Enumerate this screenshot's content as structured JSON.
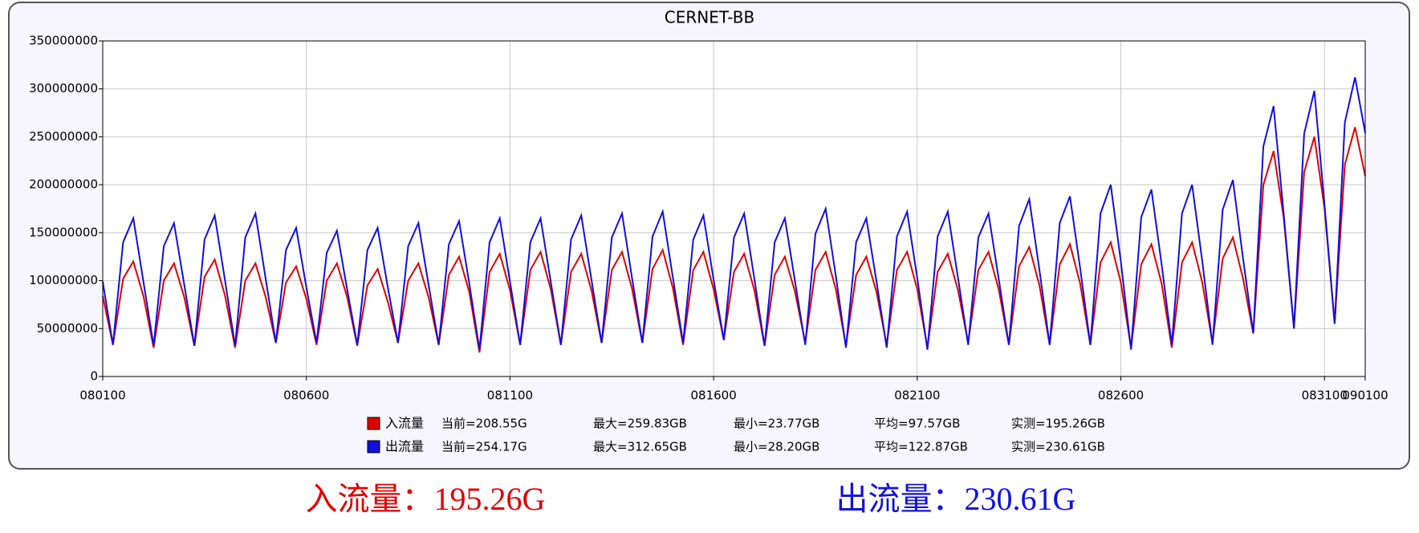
{
  "chart_data": {
    "type": "line",
    "title": "CERNET-BB",
    "categories": [
      "080100",
      null,
      null,
      null,
      null,
      null,
      null,
      null,
      null,
      null,
      null,
      null,
      null,
      null,
      null,
      null,
      null,
      null,
      null,
      null,
      "080600",
      null,
      null,
      null,
      null,
      null,
      null,
      null,
      null,
      null,
      null,
      null,
      null,
      null,
      null,
      null,
      null,
      null,
      null,
      null,
      "081100",
      null,
      null,
      null,
      null,
      null,
      null,
      null,
      null,
      null,
      null,
      null,
      null,
      null,
      null,
      null,
      null,
      null,
      null,
      null,
      "081600",
      null,
      null,
      null,
      null,
      null,
      null,
      null,
      null,
      null,
      null,
      null,
      null,
      null,
      null,
      null,
      null,
      null,
      null,
      null,
      "082100",
      null,
      null,
      null,
      null,
      null,
      null,
      null,
      null,
      null,
      null,
      null,
      null,
      null,
      null,
      null,
      null,
      null,
      null,
      null,
      "082600",
      null,
      null,
      null,
      null,
      null,
      null,
      null,
      null,
      null,
      null,
      null,
      null,
      null,
      null,
      null,
      null,
      null,
      null,
      null,
      "083100",
      null,
      null,
      null,
      "090100"
    ],
    "series": [
      {
        "name": "入流量",
        "color": "#e00000",
        "stats": [
          "当前=208.55G",
          "最大=259.83GB",
          "最小=23.77GB",
          "平均=97.57GB",
          "实测=195.26GB"
        ],
        "values": [
          84000000,
          33000000,
          102000000,
          120000000,
          84000000,
          30000000,
          100000000,
          118000000,
          83000000,
          32000000,
          104000000,
          122000000,
          85000000,
          30000000,
          100000000,
          118000000,
          83000000,
          35000000,
          98000000,
          115000000,
          81000000,
          33000000,
          100000000,
          118000000,
          83000000,
          32000000,
          95000000,
          112000000,
          78000000,
          35000000,
          100000000,
          118000000,
          83000000,
          33000000,
          106000000,
          125000000,
          88000000,
          25000000,
          109000000,
          128000000,
          90000000,
          33000000,
          111000000,
          130000000,
          91000000,
          33000000,
          109000000,
          128000000,
          90000000,
          35000000,
          111000000,
          130000000,
          91000000,
          35000000,
          112000000,
          132000000,
          92000000,
          33000000,
          111000000,
          130000000,
          91000000,
          38000000,
          109000000,
          128000000,
          90000000,
          32000000,
          106000000,
          125000000,
          88000000,
          35000000,
          111000000,
          130000000,
          91000000,
          32000000,
          106000000,
          125000000,
          88000000,
          33000000,
          111000000,
          130000000,
          91000000,
          30000000,
          109000000,
          128000000,
          90000000,
          35000000,
          111000000,
          130000000,
          91000000,
          33000000,
          115000000,
          135000000,
          95000000,
          33000000,
          117000000,
          138000000,
          97000000,
          33000000,
          119000000,
          140000000,
          98000000,
          30000000,
          117000000,
          138000000,
          97000000,
          30000000,
          119000000,
          140000000,
          98000000,
          35000000,
          123000000,
          145000000,
          102000000,
          45000000,
          200000000,
          235000000,
          165000000,
          50000000,
          213000000,
          250000000,
          175000000,
          55000000,
          221000000,
          260000000,
          209000000
        ]
      },
      {
        "name": "出流量",
        "color": "#1010e0",
        "stats": [
          "当前=254.17G",
          "最大=312.65GB",
          "最小=28.20GB",
          "平均=122.87GB",
          "实测=230.61GB"
        ],
        "values": [
          99000000,
          33000000,
          140000000,
          165000000,
          99000000,
          32000000,
          136000000,
          160000000,
          96000000,
          32000000,
          143000000,
          168000000,
          101000000,
          32000000,
          145000000,
          170000000,
          102000000,
          35000000,
          132000000,
          155000000,
          93000000,
          35000000,
          129000000,
          152000000,
          91000000,
          33000000,
          132000000,
          155000000,
          93000000,
          35000000,
          136000000,
          160000000,
          96000000,
          33000000,
          138000000,
          162000000,
          97000000,
          28000000,
          140000000,
          165000000,
          99000000,
          33000000,
          140000000,
          165000000,
          99000000,
          33000000,
          143000000,
          168000000,
          101000000,
          35000000,
          145000000,
          170000000,
          102000000,
          35000000,
          146000000,
          172000000,
          103000000,
          35000000,
          143000000,
          168000000,
          101000000,
          38000000,
          145000000,
          170000000,
          102000000,
          32000000,
          140000000,
          165000000,
          99000000,
          33000000,
          149000000,
          175000000,
          105000000,
          30000000,
          140000000,
          165000000,
          99000000,
          30000000,
          146000000,
          172000000,
          103000000,
          28000000,
          146000000,
          172000000,
          103000000,
          33000000,
          145000000,
          170000000,
          102000000,
          33000000,
          157000000,
          185000000,
          111000000,
          33000000,
          160000000,
          188000000,
          113000000,
          33000000,
          170000000,
          200000000,
          120000000,
          28000000,
          166000000,
          195000000,
          117000000,
          33000000,
          170000000,
          200000000,
          120000000,
          33000000,
          174000000,
          205000000,
          123000000,
          45000000,
          240000000,
          282000000,
          169000000,
          50000000,
          253000000,
          298000000,
          179000000,
          55000000,
          265000000,
          312000000,
          254000000
        ]
      }
    ],
    "ylim": [
      0,
      350000000
    ],
    "yticks": [
      0,
      50000000,
      100000000,
      150000000,
      200000000,
      250000000,
      300000000,
      350000000
    ],
    "grid": true,
    "footer": [
      {
        "text": "入流量：195.26G",
        "color": "#e00000"
      },
      {
        "text": "出流量：230.61G",
        "color": "#1010e0"
      }
    ]
  }
}
